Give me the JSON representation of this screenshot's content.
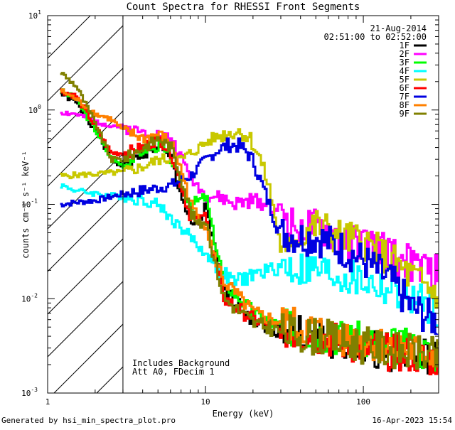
{
  "chart_data": {
    "type": "line",
    "title": "Count Spectra for RHESSI Front Segments",
    "xlabel": "Energy (keV)",
    "ylabel": "counts cm⁻² s⁻¹ keV⁻¹",
    "xscale": "log",
    "yscale": "log",
    "xlim": [
      1,
      300
    ],
    "ylim": [
      0.001,
      10
    ],
    "x_ticks": [
      {
        "value": 1,
        "label": "1"
      },
      {
        "value": 10,
        "label": "10"
      },
      {
        "value": 100,
        "label": "100"
      }
    ],
    "y_ticks": [
      {
        "value": 0.001,
        "mantissa": "10",
        "exponent": "-3"
      },
      {
        "value": 0.01,
        "mantissa": "10",
        "exponent": "-2"
      },
      {
        "value": 0.1,
        "mantissa": "10",
        "exponent": "-1"
      },
      {
        "value": 1,
        "mantissa": "10",
        "exponent": "0"
      },
      {
        "value": 10,
        "mantissa": "10",
        "exponent": "1"
      }
    ],
    "hatched_region_keV": [
      1,
      3
    ],
    "date": "21-Aug-2014",
    "time_range": "02:51:00 to 02:52:00",
    "legend_position": "top-right",
    "annotations": [
      "Includes Background",
      "Att A0, FDecim 1"
    ],
    "series": [
      {
        "name": "1F",
        "color": "#000000",
        "points": [
          [
            1.2,
            1.5
          ],
          [
            1.5,
            1.2
          ],
          [
            2,
            0.6
          ],
          [
            2.5,
            0.3
          ],
          [
            3,
            0.25
          ],
          [
            4,
            0.35
          ],
          [
            5,
            0.4
          ],
          [
            6,
            0.3
          ],
          [
            7,
            0.12
          ],
          [
            8,
            0.06
          ],
          [
            9,
            0.06
          ],
          [
            10,
            0.1
          ],
          [
            11,
            0.04
          ],
          [
            13,
            0.012
          ],
          [
            20,
            0.006
          ],
          [
            30,
            0.0045
          ],
          [
            50,
            0.004
          ],
          [
            100,
            0.003
          ],
          [
            200,
            0.0025
          ],
          [
            300,
            0.0022
          ]
        ]
      },
      {
        "name": "2F",
        "color": "#ff00ff",
        "points": [
          [
            1.2,
            0.95
          ],
          [
            1.5,
            0.9
          ],
          [
            2,
            0.75
          ],
          [
            3,
            0.65
          ],
          [
            4,
            0.58
          ],
          [
            5,
            0.55
          ],
          [
            6,
            0.5
          ],
          [
            7,
            0.3
          ],
          [
            8,
            0.2
          ],
          [
            9,
            0.15
          ],
          [
            10,
            0.12
          ],
          [
            12,
            0.12
          ],
          [
            15,
            0.1
          ],
          [
            20,
            0.11
          ],
          [
            25,
            0.1
          ],
          [
            30,
            0.085
          ],
          [
            35,
            0.06
          ],
          [
            50,
            0.055
          ],
          [
            80,
            0.04
          ],
          [
            120,
            0.035
          ],
          [
            200,
            0.023
          ],
          [
            300,
            0.018
          ]
        ]
      },
      {
        "name": "3F",
        "color": "#00ff00",
        "points": [
          [
            1.2,
            1.6
          ],
          [
            1.5,
            1.3
          ],
          [
            2,
            0.6
          ],
          [
            2.5,
            0.3
          ],
          [
            3,
            0.26
          ],
          [
            4,
            0.38
          ],
          [
            5,
            0.42
          ],
          [
            6,
            0.3
          ],
          [
            7,
            0.15
          ],
          [
            8,
            0.1
          ],
          [
            9,
            0.11
          ],
          [
            10,
            0.12
          ],
          [
            11,
            0.05
          ],
          [
            13,
            0.015
          ],
          [
            20,
            0.007
          ],
          [
            30,
            0.005
          ],
          [
            50,
            0.0045
          ],
          [
            100,
            0.0035
          ],
          [
            200,
            0.003
          ],
          [
            300,
            0.0025
          ]
        ]
      },
      {
        "name": "4F",
        "color": "#00ffff",
        "points": [
          [
            1.2,
            0.16
          ],
          [
            1.5,
            0.14
          ],
          [
            2,
            0.13
          ],
          [
            3,
            0.12
          ],
          [
            4,
            0.11
          ],
          [
            5,
            0.1
          ],
          [
            6,
            0.07
          ],
          [
            7,
            0.055
          ],
          [
            8,
            0.045
          ],
          [
            9,
            0.035
          ],
          [
            10,
            0.03
          ],
          [
            12,
            0.02
          ],
          [
            15,
            0.015
          ],
          [
            20,
            0.018
          ],
          [
            25,
            0.02
          ],
          [
            30,
            0.022
          ],
          [
            40,
            0.02
          ],
          [
            50,
            0.02
          ],
          [
            70,
            0.017
          ],
          [
            100,
            0.015
          ],
          [
            150,
            0.012
          ],
          [
            200,
            0.01
          ],
          [
            300,
            0.0075
          ]
        ]
      },
      {
        "name": "5F",
        "color": "#c8c800",
        "points": [
          [
            1.2,
            0.2
          ],
          [
            2,
            0.21
          ],
          [
            3,
            0.22
          ],
          [
            4,
            0.25
          ],
          [
            5,
            0.3
          ],
          [
            7,
            0.3
          ],
          [
            9,
            0.4
          ],
          [
            11,
            0.5
          ],
          [
            13,
            0.55
          ],
          [
            16,
            0.6
          ],
          [
            19,
            0.5
          ],
          [
            22,
            0.3
          ],
          [
            25,
            0.15
          ],
          [
            28,
            0.06
          ],
          [
            30,
            0.03
          ],
          [
            32,
            0.025
          ],
          [
            35,
            0.045
          ],
          [
            50,
            0.06
          ],
          [
            70,
            0.045
          ],
          [
            100,
            0.04
          ],
          [
            150,
            0.025
          ],
          [
            200,
            0.017
          ],
          [
            300,
            0.011
          ]
        ]
      },
      {
        "name": "6F",
        "color": "#ff0000",
        "points": [
          [
            1.2,
            1.6
          ],
          [
            1.5,
            1.4
          ],
          [
            2,
            0.65
          ],
          [
            2.5,
            0.35
          ],
          [
            3,
            0.35
          ],
          [
            4,
            0.4
          ],
          [
            5,
            0.5
          ],
          [
            6,
            0.35
          ],
          [
            7,
            0.15
          ],
          [
            8,
            0.07
          ],
          [
            9,
            0.065
          ],
          [
            10,
            0.08
          ],
          [
            11,
            0.03
          ],
          [
            13,
            0.01
          ],
          [
            20,
            0.006
          ],
          [
            30,
            0.0045
          ],
          [
            50,
            0.004
          ],
          [
            100,
            0.003
          ],
          [
            200,
            0.0025
          ],
          [
            300,
            0.0022
          ]
        ]
      },
      {
        "name": "7F",
        "color": "#0000e0",
        "points": [
          [
            1.2,
            0.1
          ],
          [
            1.5,
            0.105
          ],
          [
            2,
            0.11
          ],
          [
            3,
            0.13
          ],
          [
            4,
            0.14
          ],
          [
            5,
            0.15
          ],
          [
            6,
            0.16
          ],
          [
            7,
            0.18
          ],
          [
            8,
            0.2
          ],
          [
            9,
            0.25
          ],
          [
            10,
            0.3
          ],
          [
            12,
            0.38
          ],
          [
            14,
            0.43
          ],
          [
            16,
            0.42
          ],
          [
            18,
            0.36
          ],
          [
            20,
            0.28
          ],
          [
            22,
            0.18
          ],
          [
            25,
            0.1
          ],
          [
            28,
            0.06
          ],
          [
            30,
            0.05
          ],
          [
            40,
            0.045
          ],
          [
            50,
            0.045
          ],
          [
            70,
            0.035
          ],
          [
            100,
            0.025
          ],
          [
            150,
            0.015
          ],
          [
            200,
            0.008
          ],
          [
            300,
            0.0055
          ]
        ]
      },
      {
        "name": "8F",
        "color": "#ff8000",
        "points": [
          [
            1.2,
            1.6
          ],
          [
            1.5,
            1.3
          ],
          [
            2,
            0.9
          ],
          [
            2.5,
            0.8
          ],
          [
            3,
            0.6
          ],
          [
            4,
            0.5
          ],
          [
            5,
            0.55
          ],
          [
            6,
            0.45
          ],
          [
            7,
            0.22
          ],
          [
            8,
            0.1
          ],
          [
            9,
            0.07
          ],
          [
            10,
            0.06
          ],
          [
            11,
            0.03
          ],
          [
            13,
            0.015
          ],
          [
            20,
            0.007
          ],
          [
            30,
            0.0055
          ],
          [
            50,
            0.0045
          ],
          [
            100,
            0.0035
          ],
          [
            200,
            0.0028
          ],
          [
            300,
            0.0025
          ]
        ]
      },
      {
        "name": "9F",
        "color": "#808000",
        "points": [
          [
            1.2,
            2.5
          ],
          [
            1.5,
            1.8
          ],
          [
            2,
            0.7
          ],
          [
            2.5,
            0.3
          ],
          [
            3,
            0.3
          ],
          [
            4,
            0.4
          ],
          [
            5,
            0.5
          ],
          [
            6,
            0.4
          ],
          [
            7,
            0.18
          ],
          [
            8,
            0.08
          ],
          [
            9,
            0.06
          ],
          [
            10,
            0.07
          ],
          [
            11,
            0.03
          ],
          [
            13,
            0.01
          ],
          [
            20,
            0.0055
          ],
          [
            30,
            0.0045
          ],
          [
            50,
            0.004
          ],
          [
            100,
            0.0032
          ],
          [
            200,
            0.0027
          ],
          [
            300,
            0.0024
          ]
        ]
      }
    ]
  },
  "footer": {
    "generated_by": "Generated by hsi_min_spectra_plot.pro",
    "timestamp": "16-Apr-2023 15:54"
  }
}
